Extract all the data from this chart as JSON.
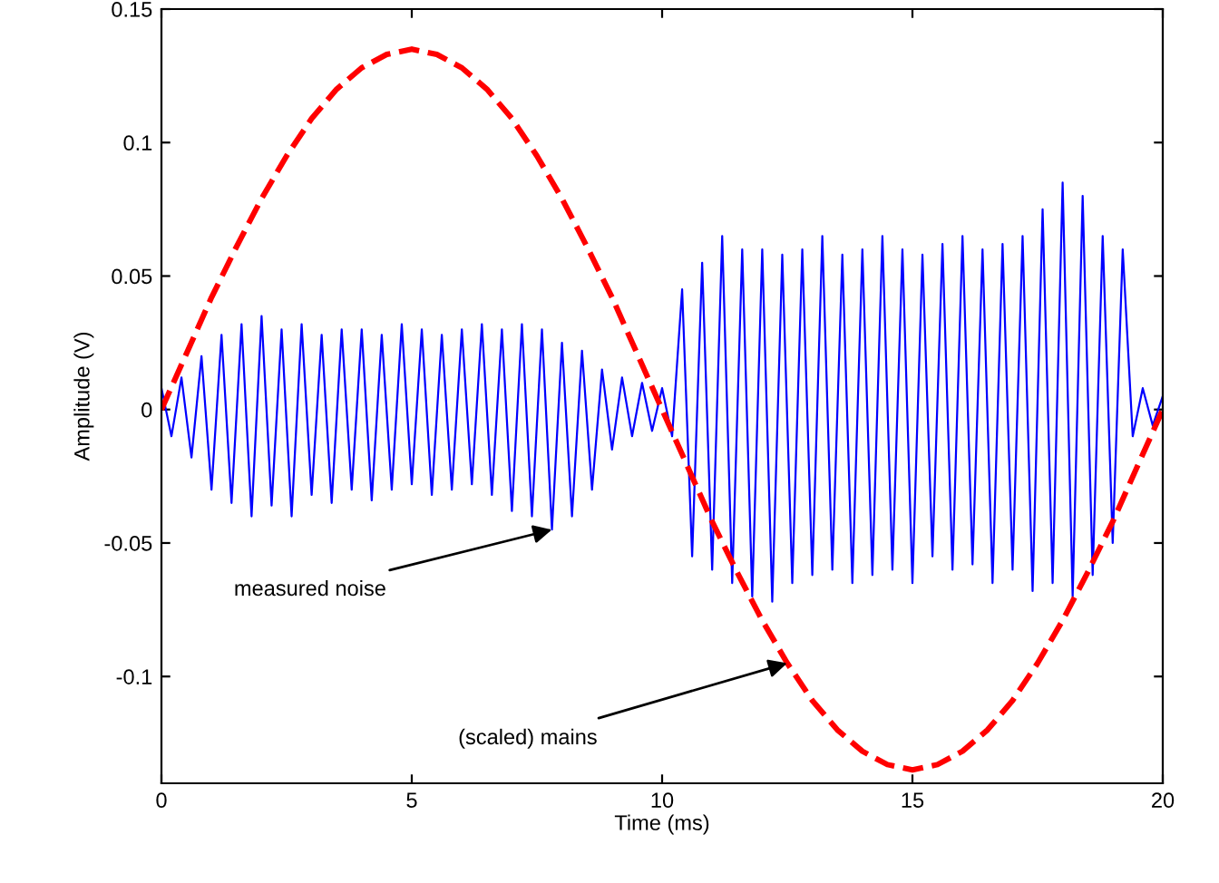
{
  "chart_data": {
    "type": "line",
    "xlabel": "Time (ms)",
    "ylabel": "Amplitude (V)",
    "xlim": [
      0,
      20
    ],
    "ylim": [
      -0.14,
      0.15
    ],
    "xticks": [
      0,
      5,
      10,
      15,
      20
    ],
    "yticks": [
      -0.1,
      -0.05,
      0,
      0.05,
      0.1,
      0.15
    ],
    "grid": false,
    "legend": false,
    "series": [
      {
        "line_style": "solid",
        "color": "#0000ff",
        "x": [
          0,
          0.2,
          0.4,
          0.6,
          0.8,
          1.0,
          1.2,
          1.4,
          1.6,
          1.8,
          2.0,
          2.2,
          2.4,
          2.6,
          2.8,
          3.0,
          3.2,
          3.4,
          3.6,
          3.8,
          4.0,
          4.2,
          4.4,
          4.6,
          4.8,
          5.0,
          5.2,
          5.4,
          5.6,
          5.8,
          6.0,
          6.2,
          6.4,
          6.6,
          6.8,
          7.0,
          7.2,
          7.4,
          7.6,
          7.8,
          8.0,
          8.2,
          8.4,
          8.6,
          8.8,
          9.0,
          9.2,
          9.4,
          9.6,
          9.8,
          10.0,
          10.2,
          10.4,
          10.6,
          10.8,
          11.0,
          11.2,
          11.4,
          11.6,
          11.8,
          12.0,
          12.2,
          12.4,
          12.6,
          12.8,
          13.0,
          13.2,
          13.4,
          13.6,
          13.8,
          14.0,
          14.2,
          14.4,
          14.6,
          14.8,
          15.0,
          15.2,
          15.4,
          15.6,
          15.8,
          16.0,
          16.2,
          16.4,
          16.6,
          16.8,
          17.0,
          17.2,
          17.4,
          17.6,
          17.8,
          18.0,
          18.2,
          18.4,
          18.6,
          18.8,
          19.0,
          19.2,
          19.4,
          19.6,
          19.8,
          20.0
        ],
        "values": [
          0.008,
          -0.01,
          0.012,
          -0.018,
          0.02,
          -0.03,
          0.028,
          -0.035,
          0.032,
          -0.04,
          0.035,
          -0.036,
          0.03,
          -0.04,
          0.032,
          -0.032,
          0.028,
          -0.035,
          0.03,
          -0.03,
          0.03,
          -0.034,
          0.028,
          -0.03,
          0.032,
          -0.028,
          0.03,
          -0.032,
          0.028,
          -0.03,
          0.03,
          -0.028,
          0.032,
          -0.032,
          0.03,
          -0.038,
          0.032,
          -0.04,
          0.03,
          -0.045,
          0.025,
          -0.04,
          0.022,
          -0.03,
          0.015,
          -0.015,
          0.012,
          -0.01,
          0.01,
          -0.008,
          0.008,
          -0.01,
          0.045,
          -0.055,
          0.055,
          -0.06,
          0.065,
          -0.065,
          0.06,
          -0.07,
          0.06,
          -0.072,
          0.058,
          -0.065,
          0.06,
          -0.062,
          0.065,
          -0.06,
          0.058,
          -0.065,
          0.06,
          -0.062,
          0.065,
          -0.06,
          0.06,
          -0.065,
          0.058,
          -0.055,
          0.062,
          -0.06,
          0.065,
          -0.058,
          0.06,
          -0.065,
          0.062,
          -0.06,
          0.065,
          -0.068,
          0.075,
          -0.065,
          0.085,
          -0.07,
          0.08,
          -0.062,
          0.065,
          -0.05,
          0.06,
          -0.01,
          0.008,
          -0.006,
          0.005
        ]
      },
      {
        "line_style": "dashed",
        "color": "#ff0000",
        "x": [
          0,
          0.5,
          1,
          1.5,
          2,
          2.5,
          3,
          3.5,
          4,
          4.5,
          5,
          5.5,
          6,
          6.5,
          7,
          7.5,
          8,
          8.5,
          9,
          9.5,
          10,
          10.5,
          11,
          11.5,
          12,
          12.5,
          13,
          13.5,
          14,
          14.5,
          15,
          15.5,
          16,
          16.5,
          17,
          17.5,
          18,
          18.5,
          19,
          19.5,
          20
        ],
        "values": [
          0,
          0.021,
          0.042,
          0.061,
          0.079,
          0.095,
          0.109,
          0.12,
          0.128,
          0.133,
          0.135,
          0.133,
          0.128,
          0.12,
          0.109,
          0.095,
          0.079,
          0.061,
          0.042,
          0.021,
          0,
          -0.021,
          -0.042,
          -0.061,
          -0.079,
          -0.095,
          -0.109,
          -0.12,
          -0.128,
          -0.133,
          -0.135,
          -0.133,
          -0.128,
          -0.12,
          -0.109,
          -0.095,
          -0.079,
          -0.061,
          -0.042,
          -0.021,
          0
        ]
      }
    ],
    "annotations": [
      {
        "text": "measured noise",
        "x": 7.8,
        "y": -0.045
      },
      {
        "text": "(scaled) mains",
        "x": 12.5,
        "y": -0.095
      }
    ]
  }
}
